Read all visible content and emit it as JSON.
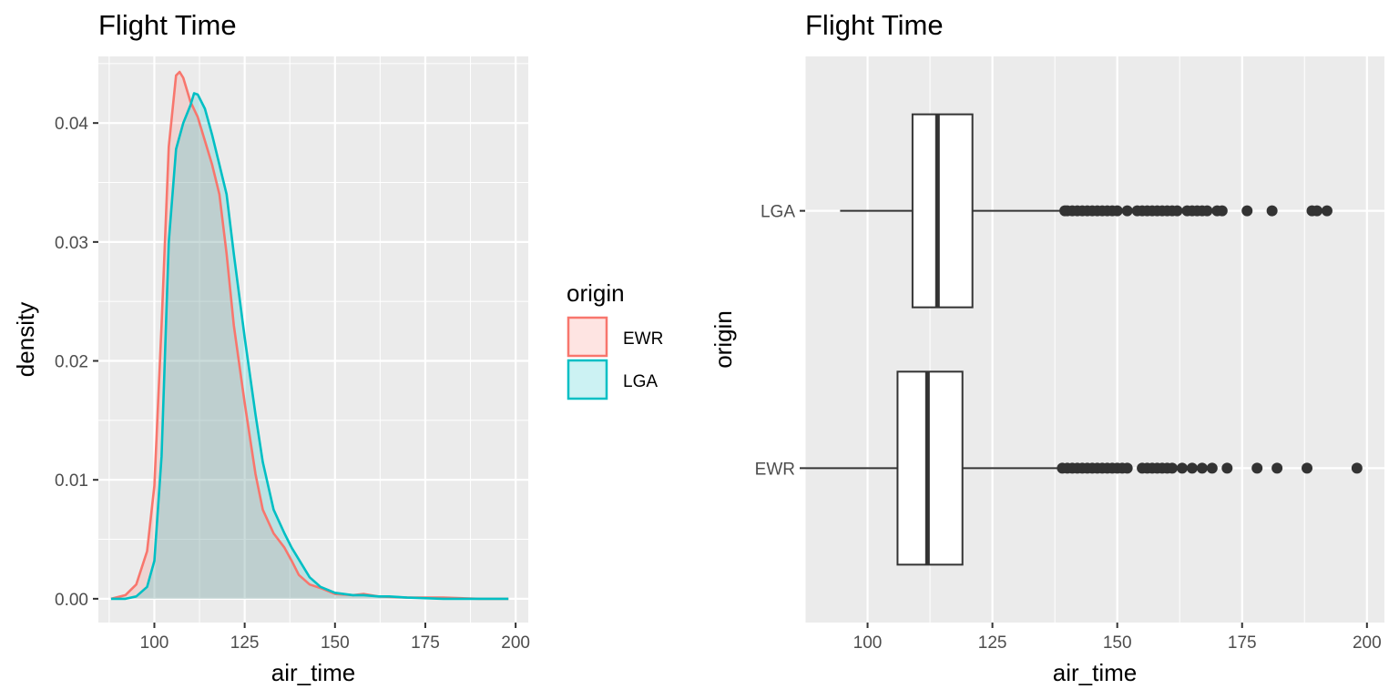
{
  "chart_data": [
    {
      "type": "area",
      "subtype": "density",
      "title": "Flight Time",
      "xlabel": "air_time",
      "ylabel": "density",
      "xlim": [
        84.5,
        203.5
      ],
      "ylim": [
        -0.002,
        0.0456
      ],
      "xticks": [
        100,
        125,
        150,
        175,
        200
      ],
      "xtick_labels": [
        "100",
        "125",
        "150",
        "175",
        "200"
      ],
      "yticks": [
        0,
        0.01,
        0.02,
        0.03,
        0.04
      ],
      "ytick_labels": [
        "0.00",
        "0.01",
        "0.02",
        "0.03",
        "0.04"
      ],
      "grid": true,
      "legend": {
        "title": "origin",
        "position": "right"
      },
      "series": [
        {
          "name": "EWR",
          "color": "#F8766D",
          "fill": "#F8766D",
          "x": [
            88,
            92,
            95,
            98,
            100,
            102,
            104,
            106,
            107,
            108,
            110,
            112,
            114,
            116,
            118,
            120,
            122,
            125,
            128,
            130,
            133,
            136,
            138,
            140,
            143,
            146,
            150,
            155,
            158,
            162,
            170,
            180,
            190,
            198
          ],
          "y": [
            0.0,
            0.0003,
            0.0012,
            0.004,
            0.0095,
            0.023,
            0.038,
            0.044,
            0.0443,
            0.0438,
            0.0418,
            0.0405,
            0.0385,
            0.0365,
            0.034,
            0.029,
            0.023,
            0.0165,
            0.0105,
            0.0075,
            0.0055,
            0.0043,
            0.0032,
            0.002,
            0.0012,
            0.0009,
            0.0004,
            0.0003,
            0.0004,
            0.0002,
            0.0001,
            0.0001,
            0.0,
            0.0
          ]
        },
        {
          "name": "LGA",
          "color": "#00BFC4",
          "fill": "#00BFC4",
          "x": [
            88,
            92,
            95,
            98,
            100,
            102,
            104,
            106,
            108,
            110,
            111,
            112,
            114,
            116,
            118,
            120,
            122,
            125,
            128,
            130,
            133,
            136,
            138,
            140,
            143,
            146,
            150,
            155,
            158,
            162,
            165,
            170,
            180,
            190,
            198
          ],
          "y": [
            0.0,
            0.0,
            0.0002,
            0.001,
            0.0032,
            0.012,
            0.03,
            0.0378,
            0.04,
            0.0415,
            0.0425,
            0.0424,
            0.0412,
            0.039,
            0.0365,
            0.034,
            0.029,
            0.022,
            0.0155,
            0.0115,
            0.0075,
            0.0055,
            0.0043,
            0.0033,
            0.0018,
            0.001,
            0.0005,
            0.0003,
            0.0003,
            0.0002,
            0.0002,
            0.0001,
            0.0,
            0.0,
            0.0
          ]
        }
      ]
    },
    {
      "type": "boxplot",
      "orientation": "horizontal",
      "title": "Flight Time",
      "xlabel": "air_time",
      "ylabel": "origin",
      "xlim": [
        87.5,
        203.5
      ],
      "xticks": [
        100,
        125,
        150,
        175,
        200
      ],
      "xtick_labels": [
        "100",
        "125",
        "150",
        "175",
        "200"
      ],
      "categories": [
        "EWR",
        "LGA"
      ],
      "grid": true,
      "boxes": [
        {
          "name": "EWR",
          "whisker_low": 87.5,
          "q1": 106,
          "median": 112,
          "q3": 119,
          "whisker_high": 138.5,
          "outliers": [
            139,
            140,
            141,
            142,
            143,
            144,
            145,
            146,
            147,
            148,
            149,
            150,
            151,
            152,
            155,
            156,
            157,
            158,
            159,
            160,
            161,
            163,
            165,
            167,
            169,
            172,
            178,
            182,
            188,
            198
          ]
        },
        {
          "name": "LGA",
          "whisker_low": 94.5,
          "q1": 109,
          "median": 114,
          "q3": 121,
          "whisker_high": 139,
          "outliers": [
            139.5,
            140,
            141,
            142,
            143,
            144,
            145,
            146,
            147,
            148,
            149,
            150,
            152,
            154,
            155,
            156,
            157,
            158,
            159,
            160,
            161,
            162,
            164,
            165,
            166,
            167,
            168,
            170,
            171,
            176,
            181,
            189,
            190,
            192
          ]
        }
      ]
    }
  ]
}
